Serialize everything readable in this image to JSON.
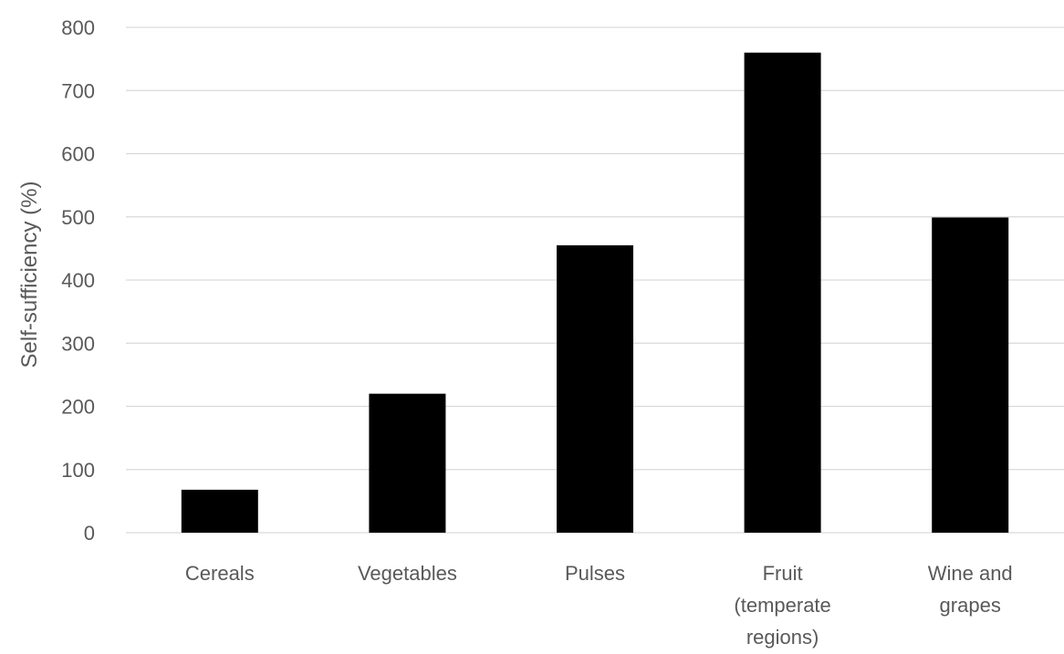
{
  "chart_data": {
    "type": "bar",
    "title": "",
    "xlabel": "",
    "ylabel": "Self-sufficiency (%)",
    "categories": [
      "Cereals",
      "Vegetables",
      "Pulses",
      "Fruit (temperate regions)",
      "Wine and grapes"
    ],
    "category_label_lines": [
      [
        "Cereals"
      ],
      [
        "Vegetables"
      ],
      [
        "Pulses"
      ],
      [
        "Fruit",
        "(temperate",
        "regions)"
      ],
      [
        "Wine and",
        "grapes"
      ]
    ],
    "values": [
      68,
      220,
      455,
      760,
      499
    ],
    "ylim": [
      0,
      800
    ],
    "yticks": [
      0,
      100,
      200,
      300,
      400,
      500,
      600,
      700,
      800
    ],
    "grid": true,
    "legend": "none",
    "colors": {
      "bar": "#000000",
      "grid": "#d9d9d9",
      "text": "#595959"
    }
  }
}
